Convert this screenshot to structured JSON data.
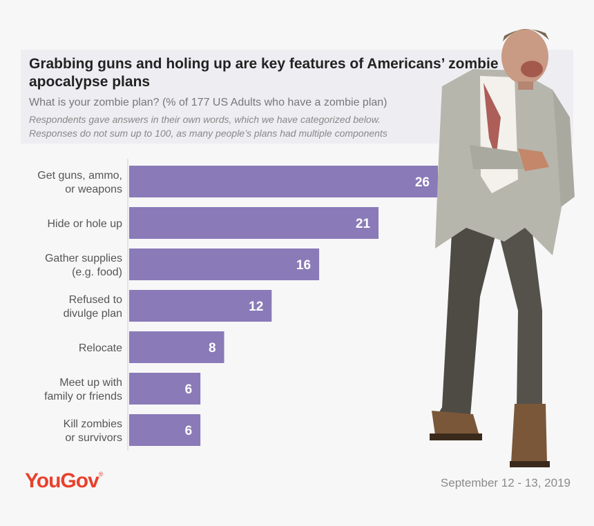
{
  "header": {
    "title": "Grabbing guns and holing up are key features of Americans’ zombie apocalypse plans",
    "subtitle": "What is your zombie plan? (% of 177 US Adults who have a zombie plan)",
    "note_line1": "Respondents gave answers in their own words, which we have categorized below.",
    "note_line2": "Responses do not sum up to 100, as many people’s plans had multiple components"
  },
  "footer": {
    "logo_text": "YouGov",
    "logo_mark": "®",
    "date": "September 12 - 13, 2019"
  },
  "colors": {
    "bar": "#8a7ab8",
    "brand": "#e8412c"
  },
  "illustration": "zombie-figure",
  "chart_data": {
    "type": "bar",
    "orientation": "horizontal",
    "categories": [
      [
        "Get guns, ammo,",
        "or weapons"
      ],
      [
        "Hide or hole up"
      ],
      [
        "Gather supplies",
        "(e.g. food)"
      ],
      [
        "Refused to",
        "divulge plan"
      ],
      [
        "Relocate"
      ],
      [
        "Meet up with",
        "family or friends"
      ],
      [
        "Kill zombies",
        "or survivors"
      ]
    ],
    "values": [
      26,
      21,
      16,
      12,
      8,
      6,
      6
    ],
    "xlim": [
      0,
      26
    ],
    "grid": false,
    "legend": "none"
  }
}
